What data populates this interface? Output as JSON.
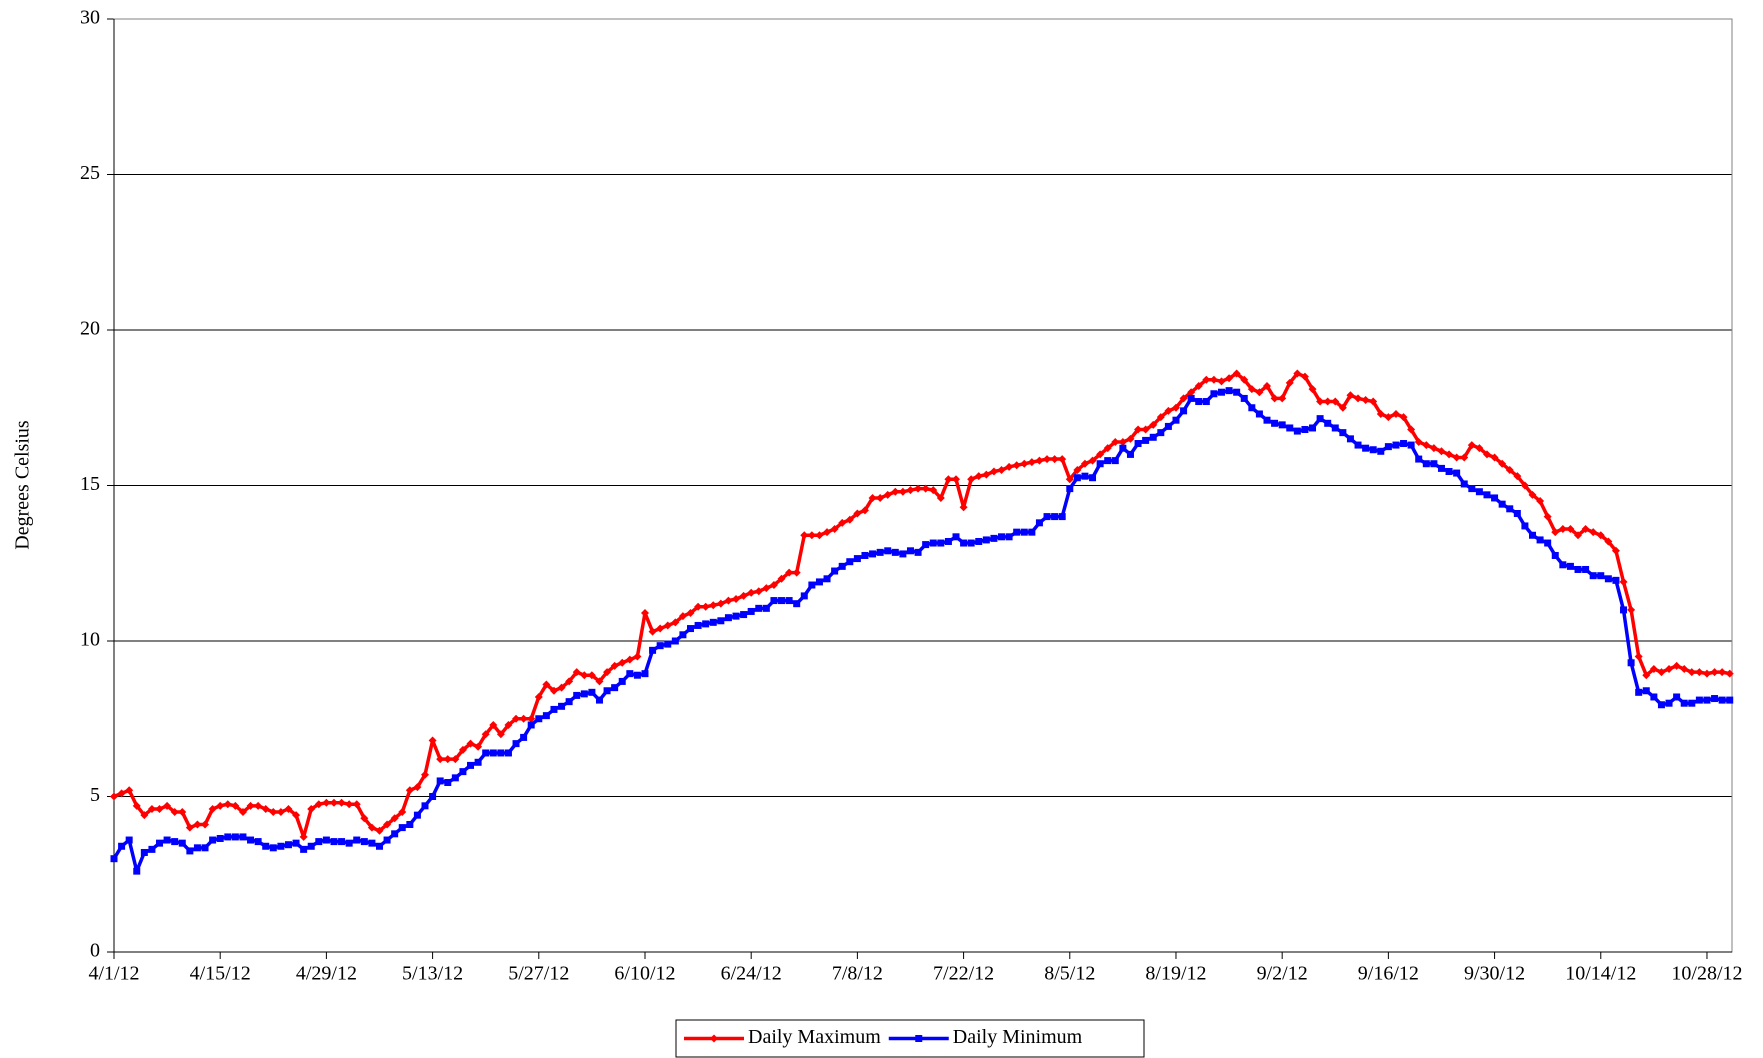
{
  "chart_data": {
    "type": "line",
    "y_label": "Degrees Celsius",
    "ylim": [
      0,
      30
    ],
    "yticks": [
      0,
      5,
      10,
      15,
      20,
      25,
      30
    ],
    "grid": true,
    "legend": "bottom",
    "categories": [
      "4/1/12",
      null,
      null,
      null,
      null,
      null,
      null,
      null,
      null,
      null,
      null,
      null,
      null,
      null,
      "4/15/12",
      null,
      null,
      null,
      null,
      null,
      null,
      null,
      null,
      null,
      null,
      null,
      null,
      null,
      "4/29/12",
      null,
      null,
      null,
      null,
      null,
      null,
      null,
      null,
      null,
      null,
      null,
      null,
      null,
      "5/13/12",
      null,
      null,
      null,
      null,
      null,
      null,
      null,
      null,
      null,
      null,
      null,
      null,
      null,
      "5/27/12",
      null,
      null,
      null,
      null,
      null,
      null,
      null,
      null,
      null,
      null,
      null,
      null,
      null,
      "6/10/12",
      null,
      null,
      null,
      null,
      null,
      null,
      null,
      null,
      null,
      null,
      null,
      null,
      null,
      "6/24/12",
      null,
      null,
      null,
      null,
      null,
      null,
      null,
      null,
      null,
      null,
      null,
      null,
      null,
      "7/8/12",
      null,
      null,
      null,
      null,
      null,
      null,
      null,
      null,
      null,
      null,
      null,
      null,
      null,
      "7/22/12",
      null,
      null,
      null,
      null,
      null,
      null,
      null,
      null,
      null,
      null,
      null,
      null,
      null,
      "8/5/12",
      null,
      null,
      null,
      null,
      null,
      null,
      null,
      null,
      null,
      null,
      null,
      null,
      null,
      "8/19/12",
      null,
      null,
      null,
      null,
      null,
      null,
      null,
      null,
      null,
      null,
      null,
      null,
      null,
      "9/2/12",
      null,
      null,
      null,
      null,
      null,
      null,
      null,
      null,
      null,
      null,
      null,
      null,
      null,
      "9/16/12",
      null,
      null,
      null,
      null,
      null,
      null,
      null,
      null,
      null,
      null,
      null,
      null,
      null,
      "9/30/12",
      null,
      null,
      null,
      null,
      null,
      null,
      null,
      null,
      null,
      null,
      null,
      null,
      null,
      "10/14/12",
      null,
      null,
      null,
      null,
      null,
      null,
      null,
      null,
      null,
      null,
      null,
      null,
      null,
      "10/28/12",
      null,
      null,
      null
    ],
    "series": [
      {
        "name": "Daily Maximum",
        "color": "#ff0000",
        "marker": "diamond",
        "values": [
          5.0,
          5.1,
          5.2,
          4.7,
          4.4,
          4.6,
          4.6,
          4.7,
          4.5,
          4.5,
          4.0,
          4.1,
          4.1,
          4.6,
          4.7,
          4.75,
          4.7,
          4.5,
          4.7,
          4.7,
          4.6,
          4.5,
          4.5,
          4.6,
          4.4,
          3.7,
          4.6,
          4.75,
          4.8,
          4.8,
          4.8,
          4.75,
          4.75,
          4.3,
          4.0,
          3.9,
          4.1,
          4.3,
          4.5,
          5.2,
          5.3,
          5.7,
          6.8,
          6.2,
          6.2,
          6.2,
          6.5,
          6.7,
          6.6,
          7.0,
          7.3,
          7.0,
          7.3,
          7.5,
          7.5,
          7.5,
          8.2,
          8.6,
          8.4,
          8.5,
          8.7,
          9.0,
          8.9,
          8.9,
          8.7,
          9.0,
          9.2,
          9.3,
          9.4,
          9.5,
          10.9,
          10.3,
          10.4,
          10.5,
          10.6,
          10.8,
          10.9,
          11.1,
          11.1,
          11.15,
          11.2,
          11.3,
          11.35,
          11.45,
          11.55,
          11.6,
          11.7,
          11.8,
          12.0,
          12.2,
          12.2,
          13.4,
          13.4,
          13.4,
          13.5,
          13.6,
          13.8,
          13.9,
          14.1,
          14.2,
          14.6,
          14.6,
          14.7,
          14.8,
          14.8,
          14.85,
          14.9,
          14.9,
          14.85,
          14.6,
          15.2,
          15.2,
          14.3,
          15.2,
          15.3,
          15.35,
          15.45,
          15.5,
          15.6,
          15.65,
          15.7,
          15.75,
          15.8,
          15.85,
          15.85,
          15.85,
          15.2,
          15.5,
          15.7,
          15.8,
          16.0,
          16.2,
          16.4,
          16.4,
          16.5,
          16.8,
          16.8,
          16.95,
          17.2,
          17.4,
          17.5,
          17.8,
          18.0,
          18.2,
          18.4,
          18.4,
          18.35,
          18.45,
          18.6,
          18.4,
          18.1,
          18.0,
          18.2,
          17.8,
          17.8,
          18.3,
          18.6,
          18.5,
          18.1,
          17.7,
          17.7,
          17.7,
          17.5,
          17.9,
          17.8,
          17.75,
          17.7,
          17.3,
          17.2,
          17.3,
          17.2,
          16.8,
          16.4,
          16.3,
          16.2,
          16.1,
          16.0,
          15.9,
          15.9,
          16.3,
          16.2,
          16.0,
          15.9,
          15.7,
          15.5,
          15.3,
          15.0,
          14.7,
          14.5,
          14.0,
          13.5,
          13.6,
          13.6,
          13.4,
          13.6,
          13.5,
          13.4,
          13.2,
          12.9,
          11.9,
          11.0,
          9.5,
          8.9,
          9.1,
          9.0,
          9.1,
          9.2,
          9.1,
          9.0,
          9.0,
          8.95,
          9.0,
          9.0,
          8.95
        ]
      },
      {
        "name": "Daily Minimum",
        "color": "#0000ff",
        "marker": "square",
        "values": [
          3.0,
          3.4,
          3.6,
          2.6,
          3.2,
          3.3,
          3.5,
          3.6,
          3.55,
          3.5,
          3.25,
          3.35,
          3.35,
          3.6,
          3.65,
          3.7,
          3.7,
          3.7,
          3.6,
          3.55,
          3.4,
          3.35,
          3.4,
          3.45,
          3.5,
          3.3,
          3.4,
          3.55,
          3.6,
          3.55,
          3.55,
          3.5,
          3.6,
          3.55,
          3.5,
          3.4,
          3.6,
          3.8,
          4.0,
          4.1,
          4.4,
          4.7,
          5.0,
          5.5,
          5.45,
          5.6,
          5.8,
          6.0,
          6.1,
          6.4,
          6.4,
          6.4,
          6.4,
          6.7,
          6.9,
          7.3,
          7.5,
          7.6,
          7.8,
          7.9,
          8.05,
          8.25,
          8.3,
          8.35,
          8.1,
          8.4,
          8.5,
          8.7,
          8.95,
          8.9,
          8.95,
          9.7,
          9.85,
          9.9,
          10.0,
          10.2,
          10.4,
          10.5,
          10.55,
          10.6,
          10.65,
          10.75,
          10.8,
          10.85,
          10.95,
          11.05,
          11.05,
          11.3,
          11.3,
          11.3,
          11.2,
          11.45,
          11.8,
          11.9,
          12.0,
          12.25,
          12.4,
          12.55,
          12.65,
          12.75,
          12.8,
          12.85,
          12.9,
          12.85,
          12.8,
          12.9,
          12.85,
          13.1,
          13.15,
          13.15,
          13.2,
          13.35,
          13.15,
          13.15,
          13.2,
          13.25,
          13.3,
          13.35,
          13.35,
          13.5,
          13.5,
          13.5,
          13.8,
          14.0,
          14.0,
          14.0,
          14.9,
          15.25,
          15.3,
          15.25,
          15.7,
          15.8,
          15.8,
          16.2,
          16.0,
          16.35,
          16.45,
          16.55,
          16.7,
          16.9,
          17.1,
          17.4,
          17.8,
          17.7,
          17.7,
          17.95,
          18.0,
          18.05,
          18.0,
          17.8,
          17.5,
          17.3,
          17.1,
          17.0,
          16.95,
          16.85,
          16.75,
          16.8,
          16.85,
          17.15,
          17.0,
          16.85,
          16.7,
          16.5,
          16.3,
          16.2,
          16.15,
          16.1,
          16.25,
          16.3,
          16.35,
          16.3,
          15.85,
          15.7,
          15.7,
          15.55,
          15.45,
          15.4,
          15.05,
          14.9,
          14.8,
          14.7,
          14.6,
          14.4,
          14.25,
          14.1,
          13.7,
          13.4,
          13.25,
          13.15,
          12.75,
          12.45,
          12.4,
          12.3,
          12.3,
          12.1,
          12.1,
          12.0,
          11.95,
          11.0,
          9.3,
          8.35,
          8.4,
          8.2,
          7.95,
          8.0,
          8.2,
          8.0,
          8.0,
          8.1,
          8.1,
          8.15,
          8.1,
          8.1
        ]
      }
    ]
  }
}
